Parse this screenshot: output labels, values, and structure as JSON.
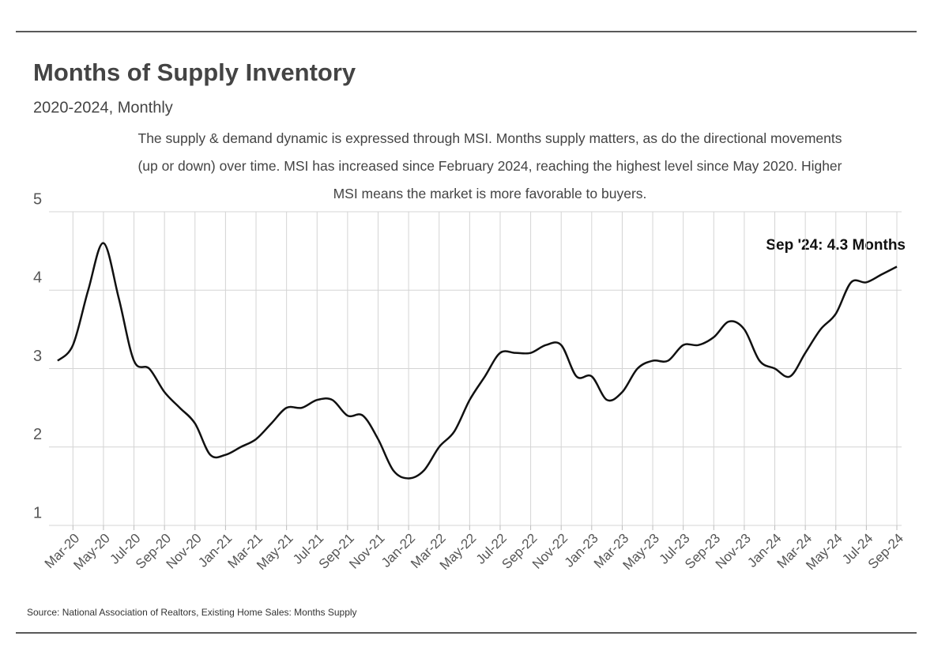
{
  "chart_data": {
    "type": "line",
    "title": "Months of Supply Inventory",
    "subtitle": "2020-2024, Monthly",
    "description": "The supply & demand dynamic is expressed through MSI. Months supply matters, as do the directional movements (up or down) over time. MSI has increased since February 2024, reaching the highest level since May 2020. Higher MSI means the market is more favorable to buyers.",
    "annotation": "Sep '24: 4.3 Months",
    "source": "Source:  National Association of Realtors, Existing Home Sales: Months Supply",
    "categories": [
      null,
      "Mar-20",
      null,
      "May-20",
      null,
      "Jul-20",
      null,
      "Sep-20",
      null,
      "Nov-20",
      null,
      "Jan-21",
      null,
      "Mar-21",
      null,
      "May-21",
      null,
      "Jul-21",
      null,
      "Sep-21",
      null,
      "Nov-21",
      null,
      "Jan-22",
      null,
      "Mar-22",
      null,
      "May-22",
      null,
      "Jul-22",
      null,
      "Sep-22",
      null,
      "Nov-22",
      null,
      "Jan-23",
      null,
      "Mar-23",
      null,
      "May-23",
      null,
      "Jul-23",
      null,
      "Sep-23",
      null,
      "Nov-23",
      null,
      "Jan-24",
      null,
      "Mar-24",
      null,
      "May-24",
      null,
      "Jul-24",
      null,
      "Sep-24"
    ],
    "series": [
      {
        "name": "Months Supply",
        "color": "#111111",
        "values": [
          3.1,
          3.3,
          4.0,
          4.6,
          3.9,
          3.1,
          3.0,
          2.7,
          2.5,
          2.3,
          1.9,
          1.9,
          2.0,
          2.1,
          2.3,
          2.5,
          2.5,
          2.6,
          2.6,
          2.4,
          2.4,
          2.1,
          1.7,
          1.6,
          1.7,
          2.0,
          2.2,
          2.6,
          2.9,
          3.2,
          3.2,
          3.2,
          3.3,
          3.3,
          2.9,
          2.9,
          2.6,
          2.7,
          3.0,
          3.1,
          3.1,
          3.3,
          3.3,
          3.4,
          3.6,
          3.5,
          3.1,
          3.0,
          2.9,
          3.2,
          3.5,
          3.7,
          4.1,
          4.1,
          4.2,
          4.3
        ]
      }
    ],
    "ylim": [
      1,
      5
    ],
    "yticks": [
      1,
      2,
      3,
      4,
      5
    ],
    "grid": true
  }
}
